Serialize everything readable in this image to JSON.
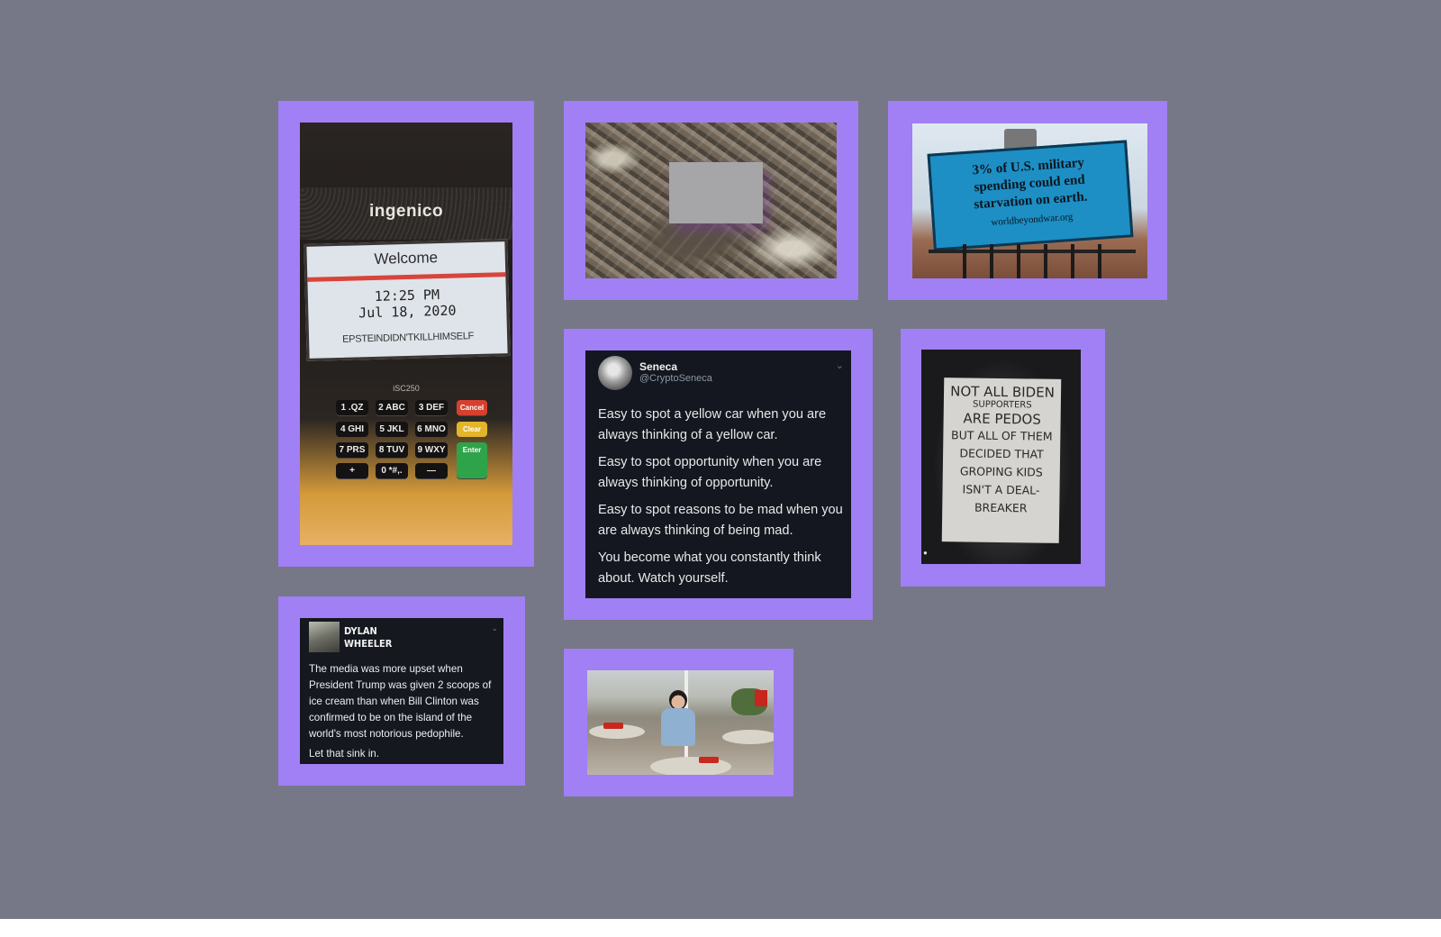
{
  "colors": {
    "background": "#767887",
    "frame": "#a17ff4",
    "tweet_background": "#14171f"
  },
  "terminal": {
    "brand": "ingenico",
    "welcome": "Welcome",
    "time": "12:25 PM",
    "date": "Jul 18, 2020",
    "message": "EPSTEINDIDN'TKILLHIMSELF",
    "model": "iSC250",
    "keys": [
      "1 .QZ",
      "2 ABC",
      "3 DEF",
      "4 GHI",
      "5 JKL",
      "6 MNO",
      "7 PRS",
      "8 TUV",
      "9 WXY",
      "+",
      "0 *#,.",
      "—"
    ],
    "key_cancel": "Cancel",
    "key_clear": "Clear",
    "key_enter": "Enter"
  },
  "billboard": {
    "line1": "3% of U.S. military",
    "line2": "spending could end",
    "line3": "starvation on earth.",
    "url": "worldbeyondwar.org"
  },
  "seneca_tweet": {
    "name": "Seneca",
    "handle": "@CryptoSeneca",
    "paragraphs": [
      "Easy to spot a yellow car when you are always thinking of a yellow car.",
      "Easy to spot opportunity when you are always thinking of opportunity.",
      "Easy to spot reasons to be mad when you are always thinking of being mad.",
      "You become what you constantly think about. Watch yourself."
    ]
  },
  "sign": {
    "line1": "NOT ALL BIDEN",
    "line2": "SUPPORTERS",
    "line3": "ARE PEDOS",
    "line4": "BUT ALL OF THEM",
    "line5": "DECIDED THAT",
    "line6": "GROPING KIDS",
    "line7": "ISN'T A DEAL-",
    "line8": "BREAKER"
  },
  "dylan_tweet": {
    "name_line1": "DYLAN",
    "name_line2": "WHEELER",
    "paragraph1": "The media was more upset when President Trump was given 2 scoops of ice cream than when Bill Clinton was confirmed to be on the island of the world's most notorious pedophile.",
    "paragraph2": "Let that sink in."
  }
}
